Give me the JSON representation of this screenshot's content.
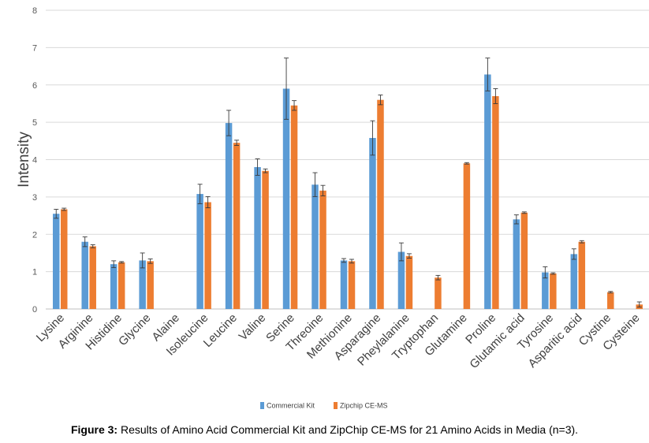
{
  "chart_data": {
    "type": "bar",
    "ylabel": "Intensity",
    "xlabel": "",
    "ylim": [
      0,
      8
    ],
    "yticks": [
      0,
      1,
      2,
      3,
      4,
      5,
      6,
      7,
      8
    ],
    "grid": true,
    "legend_position": "bottom",
    "categories": [
      "Lysine",
      "Arginine",
      "Histidine",
      "Glycine",
      "Alaine",
      "Isoleucine",
      "Leucine",
      "Valine",
      "Serine",
      "Threoine",
      "Methionine",
      "Asparagine",
      "Pheylalanine",
      "Tryptophan",
      "Glutamine",
      "Proline",
      "Glutamic acid",
      "Tyrosine",
      "Asparitic acid",
      "Cystine",
      "Cysteine"
    ],
    "series": [
      {
        "name": "Commercial Kit",
        "color": "#5B9BD5",
        "values": [
          2.55,
          1.8,
          1.2,
          1.3,
          null,
          3.08,
          4.98,
          3.8,
          5.9,
          3.33,
          1.3,
          4.58,
          1.53,
          null,
          null,
          6.28,
          2.4,
          0.98,
          1.47,
          null,
          null
        ],
        "errors": [
          0.12,
          0.13,
          0.09,
          0.2,
          null,
          0.26,
          0.34,
          0.22,
          0.82,
          0.32,
          0.05,
          0.46,
          0.24,
          null,
          null,
          0.44,
          0.12,
          0.15,
          0.14,
          null,
          null
        ]
      },
      {
        "name": "Zipchip CE-MS",
        "color": "#ED7D31",
        "values": [
          2.67,
          1.68,
          1.25,
          1.28,
          null,
          2.86,
          4.45,
          3.7,
          5.45,
          3.17,
          1.28,
          5.6,
          1.42,
          0.84,
          3.9,
          5.7,
          2.58,
          0.95,
          1.8,
          0.45,
          0.12
        ],
        "errors": [
          0.03,
          0.04,
          0.02,
          0.06,
          null,
          0.15,
          0.07,
          0.05,
          0.13,
          0.14,
          0.05,
          0.13,
          0.06,
          0.06,
          0.02,
          0.2,
          0.02,
          0.02,
          0.03,
          0.02,
          0.07
        ]
      }
    ]
  },
  "caption": {
    "label": "Figure 3:",
    "text": " Results of Amino Acid Commercial Kit and ZipChip CE-MS for 21 Amino Acids in Media (n=3)."
  }
}
